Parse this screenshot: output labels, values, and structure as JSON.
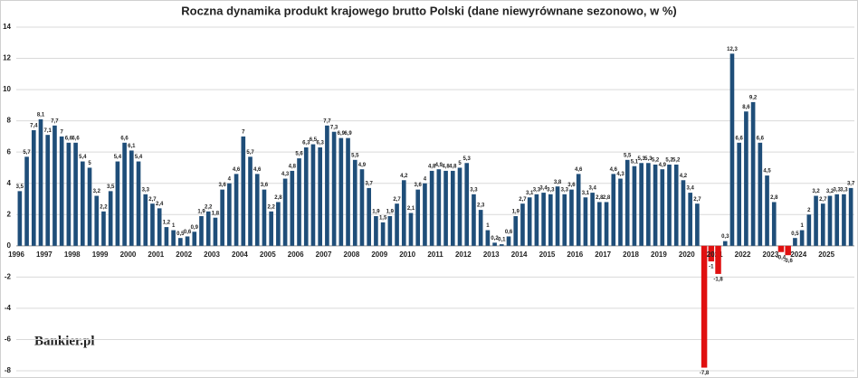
{
  "chart_data": {
    "type": "bar",
    "title": "Roczna dynamika produkt krajowego brutto Polski (dane niewyrównane sezonowo, w %)",
    "watermark": "Bankier.pl",
    "color": "#1f4e79",
    "negative_color": "#e01010",
    "grid": true,
    "ylim": [
      -8,
      14
    ],
    "yticks": [
      -8,
      -6,
      -4,
      -2,
      0,
      2,
      4,
      6,
      8,
      10,
      12,
      14
    ],
    "categories": [
      "1996",
      null,
      null,
      null,
      "1997",
      null,
      null,
      null,
      "1998",
      null,
      null,
      null,
      "1999",
      null,
      null,
      null,
      "2000",
      null,
      null,
      null,
      "2001",
      null,
      null,
      null,
      "2002",
      null,
      null,
      null,
      "2003",
      null,
      null,
      null,
      "2004",
      null,
      null,
      null,
      "2005",
      null,
      null,
      null,
      "2006",
      null,
      null,
      null,
      "2007",
      null,
      null,
      null,
      "2008",
      null,
      null,
      null,
      "2009",
      null,
      null,
      null,
      "2010",
      null,
      null,
      null,
      "2011",
      null,
      null,
      null,
      "2012",
      null,
      null,
      null,
      "2013",
      null,
      null,
      null,
      "2014",
      null,
      null,
      null,
      "2015",
      null,
      null,
      null,
      "2016",
      null,
      null,
      null,
      "2017",
      null,
      null,
      null,
      "2018",
      null,
      null,
      null,
      "2019",
      null,
      null,
      null,
      "2020",
      null,
      null,
      null,
      "2021",
      null,
      null,
      null,
      "2022",
      null,
      null,
      null,
      "2023",
      null,
      null,
      null,
      "2024",
      null,
      null,
      null,
      "2025",
      null,
      null,
      null
    ],
    "values": [
      3.5,
      5.7,
      7.4,
      8.1,
      7.1,
      7.7,
      7,
      6.6,
      6.6,
      5.4,
      5,
      3.2,
      2.2,
      3.5,
      5.4,
      6.6,
      6.1,
      5.4,
      3.3,
      2.7,
      2.4,
      1.2,
      1,
      0.5,
      0.6,
      0.9,
      1.9,
      2.2,
      1.8,
      3.6,
      4,
      4.6,
      7,
      5.7,
      4.6,
      3.6,
      2.2,
      2.8,
      4.3,
      4.8,
      5.6,
      6.3,
      6.5,
      6.3,
      7.7,
      7.3,
      6.9,
      6.9,
      5.5,
      4.9,
      3.7,
      1.9,
      1.5,
      1.9,
      2.7,
      4.2,
      2.1,
      3.6,
      4,
      4.8,
      4.9,
      4.8,
      4.8,
      5,
      5.3,
      3.3,
      2.3,
      1,
      0.2,
      0.1,
      0.6,
      1.9,
      2.7,
      3.1,
      3.3,
      3.4,
      3.3,
      3.8,
      3.3,
      3.6,
      4.6,
      3.1,
      3.4,
      2.8,
      2.8,
      4.6,
      4.3,
      5.5,
      5.1,
      5.3,
      5.3,
      5.2,
      4.9,
      5.2,
      5.2,
      4.2,
      3.4,
      2.7,
      -7.8,
      -1,
      -1.8,
      0.3,
      12.3,
      6.6,
      8.6,
      9.2,
      6.6,
      4.5,
      2.8,
      -0.4,
      -0.6,
      0.5,
      1,
      2,
      3.2,
      2.7,
      3.2,
      3.3,
      3.3,
      3.7
    ],
    "value_labels": [
      "3,5",
      "5,7",
      "7,4",
      "8,1",
      "7,1",
      "7,7",
      "7",
      "6,6",
      "6,6",
      "5,4",
      "5",
      "3,2",
      "2,2",
      "3,5",
      "5,4",
      "6,6",
      "6,1",
      "5,4",
      "3,3",
      "2,7",
      "2,4",
      "1,2",
      "1",
      "0,5",
      "0,6",
      "0,9",
      "1,9",
      "2,2",
      "1,8",
      "3,6",
      "4",
      "4,6",
      "7",
      "5,7",
      "4,6",
      "3,6",
      "2,2",
      "2,8",
      "4,3",
      "4,8",
      "5,6",
      "6,3",
      "6,5",
      "6,3",
      "7,7",
      "7,3",
      "6,9",
      "6,9",
      "5,5",
      "4,9",
      "3,7",
      "1,9",
      "1,5",
      "1,9",
      "2,7",
      "4,2",
      "2,1",
      "3,6",
      "4",
      "4,8",
      "4,9",
      "4,8",
      "4,8",
      "5",
      "5,3",
      "3,3",
      "2,3",
      "1",
      "0,2",
      "0,1",
      "0,6",
      "1,9",
      "2,7",
      "3,1",
      "3,3",
      "3,4",
      "3,3",
      "3,8",
      "3,3",
      "3,6",
      "4,6",
      "3,1",
      "3,4",
      "2,8",
      "2,8",
      "4,6",
      "4,3",
      "5,5",
      "5,1",
      "5,3",
      "5,3",
      "5,2",
      "4,9",
      "5,2",
      "5,2",
      "4,2",
      "3,4",
      "2,7",
      "-7,8",
      "-1",
      "-1,8",
      "0,3",
      "12,3",
      "6,6",
      "8,6",
      "9,2",
      "6,6",
      "4,5",
      "2,8",
      "-0,4",
      "-0,6",
      "0,5",
      "1",
      "2",
      "3,2",
      "2,7",
      "3,2",
      "3,3",
      "3,3",
      "3,7"
    ]
  }
}
